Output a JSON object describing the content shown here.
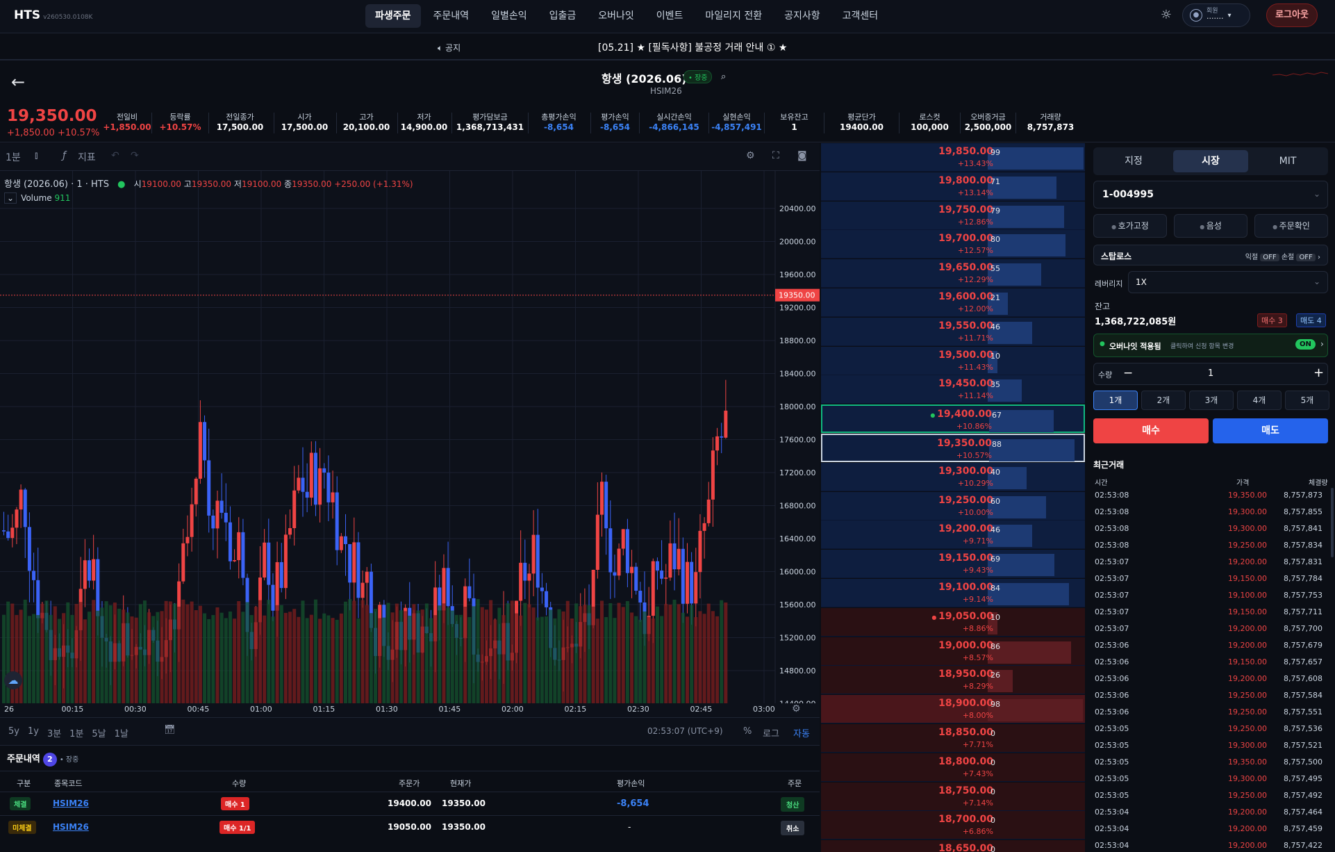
{
  "app": {
    "logo": "HTS",
    "version": "v260530.0108K"
  },
  "nav": [
    "파생주문",
    "주문내역",
    "일별손익",
    "입출금",
    "오버나잇",
    "이벤트",
    "마일리지 전환",
    "공지사항",
    "고객센터"
  ],
  "user": {
    "label": "회원",
    "name": "·······",
    "logout": "로그아웃"
  },
  "notice": {
    "label": "공지",
    "text": "[05.21] ★ [필독사항] 불공정 거래 안내 ① ★"
  },
  "symbol": {
    "name": "항생 (2026.06)",
    "session": "• 장중",
    "code": "HSIM26"
  },
  "price": {
    "last": "19,350.00",
    "change": "+1,850.00",
    "change_pct": "+10.57%"
  },
  "stats": [
    {
      "label": "전일비",
      "value": "+1,850.00",
      "tone": "red"
    },
    {
      "label": "등락률",
      "value": "+10.57%",
      "tone": "red"
    },
    {
      "label": "전일종가",
      "value": "17,500.00",
      "tone": "white"
    },
    {
      "label": "시가",
      "value": "17,500.00",
      "tone": "white"
    },
    {
      "label": "고가",
      "value": "20,100.00",
      "tone": "white"
    },
    {
      "label": "저가",
      "value": "14,900.00",
      "tone": "white"
    },
    {
      "label": "평가담보금",
      "value": "1,368,713,431",
      "tone": "white"
    },
    {
      "label": "총평가손익",
      "value": "-8,654",
      "tone": "blue"
    },
    {
      "label": "평가손익",
      "value": "-8,654",
      "tone": "blue"
    },
    {
      "label": "실시간손익",
      "value": "-4,866,145",
      "tone": "blue"
    },
    {
      "label": "실현손익",
      "value": "-4,857,491",
      "tone": "blue"
    },
    {
      "label": "보유잔고",
      "value": "1",
      "tone": "white"
    },
    {
      "label": "평균단가",
      "value": "19400.00",
      "tone": "white"
    },
    {
      "label": "로스컷",
      "value": "100,000",
      "tone": "white"
    },
    {
      "label": "오버증거금",
      "value": "2,500,000",
      "tone": "white"
    },
    {
      "label": "거래량",
      "value": "8,757,873",
      "tone": "white"
    }
  ],
  "chart_toolbar": {
    "interval": "1분",
    "indicators": "지표"
  },
  "chart_info": {
    "title": "항생 (2026.06) · 1 · HTS",
    "o_label": "시",
    "o": "19100.00",
    "h_label": "고",
    "h": "19350.00",
    "l_label": "저",
    "l": "19100.00",
    "c_label": "종",
    "c": "19350.00",
    "chg": "+250.00 (+1.31%)",
    "volume_label": "Volume",
    "volume": "911"
  },
  "chart_data": {
    "type": "candlestick",
    "yaxis_ticks": [
      "20400.00",
      "20000.00",
      "19600.00",
      "19200.00",
      "18800.00",
      "18400.00",
      "18000.00",
      "17600.00",
      "17200.00",
      "16800.00",
      "16400.00",
      "16000.00",
      "15600.00",
      "15200.00",
      "14800.00",
      "14400.00"
    ],
    "ylim": [
      14400,
      20560
    ],
    "xaxis_ticks": [
      "26",
      "00:15",
      "00:30",
      "00:45",
      "01:00",
      "01:15",
      "01:30",
      "01:45",
      "02:00",
      "02:15",
      "02:30",
      "02:45",
      "03:00"
    ],
    "last_price_label": "19350.00",
    "last_price": 19350
  },
  "range_buttons": [
    "5y",
    "1y",
    "3분",
    "1분",
    "5날",
    "1날"
  ],
  "chart_clock": "02:53:07 (UTC+9)",
  "chart_scale": [
    "%",
    "로그",
    "자동"
  ],
  "orders": {
    "title": "주문내역",
    "count": "2",
    "session": "• 장중",
    "headers": [
      "구분",
      "종목코드",
      "수량",
      "주문가",
      "현재가",
      "평가손익",
      "주문"
    ],
    "rows": [
      {
        "type": "체결",
        "code": "HSIM26",
        "qty": "매수 1",
        "price": "19400.00",
        "cur": "19350.00",
        "pnl": "-8,654",
        "action": "청산"
      },
      {
        "type": "미체결",
        "code": "HSIM26",
        "qty": "매수 1/1",
        "price": "19050.00",
        "cur": "19350.00",
        "pnl": "-",
        "action": "취소"
      }
    ]
  },
  "orderbook": {
    "asks": [
      {
        "price": "19,850.00",
        "pct": "+13.43%",
        "qty": "99"
      },
      {
        "price": "19,800.00",
        "pct": "+13.14%",
        "qty": "71"
      },
      {
        "price": "19,750.00",
        "pct": "+12.86%",
        "qty": "79"
      },
      {
        "price": "19,700.00",
        "pct": "+12.57%",
        "qty": "80"
      },
      {
        "price": "19,650.00",
        "pct": "+12.29%",
        "qty": "55"
      },
      {
        "price": "19,600.00",
        "pct": "+12.00%",
        "qty": "21"
      },
      {
        "price": "19,550.00",
        "pct": "+11.71%",
        "qty": "46"
      },
      {
        "price": "19,500.00",
        "pct": "+11.43%",
        "qty": "10"
      },
      {
        "price": "19,450.00",
        "pct": "+11.14%",
        "qty": "35"
      },
      {
        "price": "19,400.00",
        "pct": "+10.86%",
        "qty": "67"
      },
      {
        "price": "19,350.00",
        "pct": "+10.57%",
        "qty": "88"
      },
      {
        "price": "19,300.00",
        "pct": "+10.29%",
        "qty": "40"
      },
      {
        "price": "19,250.00",
        "pct": "+10.00%",
        "qty": "60"
      },
      {
        "price": "19,200.00",
        "pct": "+9.71%",
        "qty": "46"
      },
      {
        "price": "19,150.00",
        "pct": "+9.43%",
        "qty": "69"
      },
      {
        "price": "19,100.00",
        "pct": "+9.14%",
        "qty": "84"
      }
    ],
    "bids": [
      {
        "price": "19,050.00",
        "pct": "+8.86%",
        "qty": "10"
      },
      {
        "price": "19,000.00",
        "pct": "+8.57%",
        "qty": "86"
      },
      {
        "price": "18,950.00",
        "pct": "+8.29%",
        "qty": "26"
      },
      {
        "price": "18,900.00",
        "pct": "+8.00%",
        "qty": "98"
      },
      {
        "price": "18,850.00",
        "pct": "+7.71%",
        "qty": "0"
      },
      {
        "price": "18,800.00",
        "pct": "+7.43%",
        "qty": "0"
      },
      {
        "price": "18,750.00",
        "pct": "+7.14%",
        "qty": "0"
      },
      {
        "price": "18,700.00",
        "pct": "+6.86%",
        "qty": "0"
      },
      {
        "price": "18,650.00",
        "pct": "",
        "qty": "0"
      }
    ]
  },
  "order_panel": {
    "tabs": [
      "지정",
      "시장",
      "MIT"
    ],
    "account": "1-004995",
    "options": [
      "호가고정",
      "음성",
      "주문확인"
    ],
    "stoploss": {
      "label": "스탑로스",
      "take_label": "익절",
      "take": "OFF",
      "loss_label": "손절",
      "loss": "OFF"
    },
    "leverage": {
      "label": "레버리지",
      "value": "1X"
    },
    "balance_label": "잔고",
    "balance": "1,368,722,085원",
    "buy_count": "매수 3",
    "sell_count": "매도 4",
    "overnight": {
      "label": "오버나잇 적용됨",
      "hint": "클릭하여 신청 항목 변경",
      "toggle": "ON"
    },
    "qty_label": "수량",
    "qty": "1",
    "qty_presets": [
      "1개",
      "2개",
      "3개",
      "4개",
      "5개"
    ],
    "buy": "매수",
    "sell": "매도",
    "recent_title": "최근거래",
    "recent_headers": [
      "시간",
      "가격",
      "체결량"
    ],
    "recent": [
      [
        "02:53:08",
        "19,350.00",
        "8,757,873"
      ],
      [
        "02:53:08",
        "19,300.00",
        "8,757,855"
      ],
      [
        "02:53:08",
        "19,300.00",
        "8,757,841"
      ],
      [
        "02:53:08",
        "19,250.00",
        "8,757,834"
      ],
      [
        "02:53:07",
        "19,200.00",
        "8,757,831"
      ],
      [
        "02:53:07",
        "19,150.00",
        "8,757,784"
      ],
      [
        "02:53:07",
        "19,100.00",
        "8,757,753"
      ],
      [
        "02:53:07",
        "19,150.00",
        "8,757,711"
      ],
      [
        "02:53:07",
        "19,200.00",
        "8,757,700"
      ],
      [
        "02:53:06",
        "19,200.00",
        "8,757,679"
      ],
      [
        "02:53:06",
        "19,150.00",
        "8,757,657"
      ],
      [
        "02:53:06",
        "19,200.00",
        "8,757,608"
      ],
      [
        "02:53:06",
        "19,250.00",
        "8,757,584"
      ],
      [
        "02:53:06",
        "19,250.00",
        "8,757,551"
      ],
      [
        "02:53:05",
        "19,250.00",
        "8,757,536"
      ],
      [
        "02:53:05",
        "19,300.00",
        "8,757,521"
      ],
      [
        "02:53:05",
        "19,350.00",
        "8,757,500"
      ],
      [
        "02:53:05",
        "19,300.00",
        "8,757,495"
      ],
      [
        "02:53:05",
        "19,250.00",
        "8,757,492"
      ],
      [
        "02:53:04",
        "19,200.00",
        "8,757,464"
      ],
      [
        "02:53:04",
        "19,200.00",
        "8,757,459"
      ],
      [
        "02:53:04",
        "19,200.00",
        "8,757,422"
      ]
    ]
  }
}
